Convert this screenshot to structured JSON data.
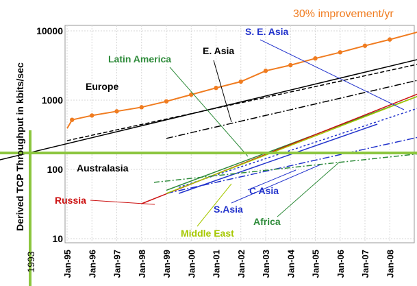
{
  "chart_data": {
    "type": "line",
    "ylabel": "Derived TCP Throughput in kbits/sec",
    "y_scale": "log",
    "ylim": [
      10,
      10000
    ],
    "y_ticks": [
      "10",
      "100",
      "1000",
      "10000"
    ],
    "x_ticks": [
      "Jan-95",
      "Jan-96",
      "Jan-97",
      "Jan-98",
      "Jan-99",
      "Jan-00",
      "Jan-01",
      "Jan-02",
      "Jan-03",
      "Jan-04",
      "Jan-05",
      "Jan-06",
      "Jan-07",
      "Jan-08"
    ],
    "x_marker_label": "1993",
    "trend_label": "30% improvement/yr",
    "threshold_y": 170,
    "series": [
      {
        "name": "Europe",
        "color": "#000000",
        "dash": "6,3",
        "x": [
          1995.0,
          2009.3
        ],
        "y": [
          260,
          3400
        ]
      },
      {
        "name": "E. Asia",
        "color": "#000000",
        "dash": "10,3,2,3",
        "x": [
          1999.0,
          2009.3
        ],
        "y": [
          280,
          2000
        ]
      },
      {
        "name": "Australasia",
        "color": "#000000",
        "dash": "",
        "x": [
          1992.2,
          2009.3
        ],
        "y": [
          135,
          4000
        ]
      },
      {
        "name": "Latin America",
        "color": "#2e8b3a",
        "dash": "",
        "x": [
          1999.0,
          2009.3
        ],
        "y": [
          50,
          1200
        ]
      },
      {
        "name": "S. E. Asia",
        "color": "#2233cc",
        "dash": "3,3",
        "x": [
          1999.5,
          2009.3
        ],
        "y": [
          55,
          800
        ]
      },
      {
        "name": "Russia",
        "color": "#cc1111",
        "dash": "",
        "x": [
          1998.0,
          2009.3
        ],
        "y": [
          32,
          1300
        ]
      },
      {
        "name": "C Asia",
        "color": "#2233cc",
        "dash": "",
        "x": [
          1999.5,
          2007.5
        ],
        "y": [
          45,
          450
        ]
      },
      {
        "name": "S.Asia",
        "color": "#2233cc",
        "dash": "10,3,2,3",
        "x": [
          1999.0,
          2009.3
        ],
        "y": [
          45,
          300
        ]
      },
      {
        "name": "Middle East",
        "color": "#a6c800",
        "dash": "",
        "x": [
          1999.0,
          2009.3
        ],
        "y": [
          45,
          1200
        ]
      },
      {
        "name": "Africa",
        "color": "#2e8b3a",
        "dash": "8,3,2,3",
        "x": [
          1998.5,
          2009.3
        ],
        "y": [
          65,
          170
        ]
      }
    ],
    "trend_points": {
      "x": [
        1995.2,
        1996.0,
        1997.0,
        1998.0,
        1999.0,
        2000.0,
        2001.0,
        2002.0,
        2003.0,
        2004.0,
        2005.0,
        2006.0,
        2007.0,
        2008.0
      ],
      "y": [
        520,
        600,
        690,
        790,
        960,
        1200,
        1500,
        1850,
        2650,
        3200,
        4000,
        4900,
        6100,
        7500
      ]
    },
    "trend_color": "#f07c20"
  }
}
